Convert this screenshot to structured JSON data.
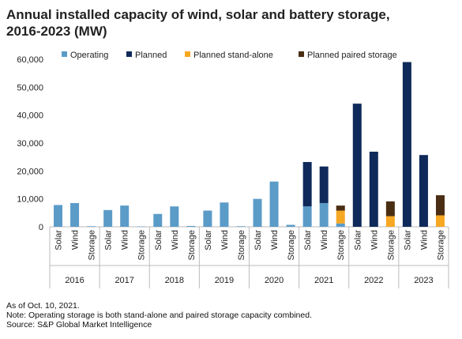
{
  "title_line1": "Annual installed capacity of wind, solar and battery storage,",
  "title_line2": "2016-2023 (MW)",
  "notes": [
    "As of Oct. 10, 2021.",
    "Note: Operating storage is both stand-alone and paired storage capacity combined.",
    "Source: S&P Global Market Intelligence"
  ],
  "colors": {
    "Operating": "#5b9bc8",
    "Planned": "#0f2a5a",
    "Planned stand-alone": "#f7a823",
    "Planned paired storage": "#4a2e14"
  },
  "chart_data": {
    "type": "bar",
    "stacked": true,
    "ylim": [
      0,
      60000
    ],
    "yticks": [
      0,
      10000,
      20000,
      30000,
      40000,
      50000,
      60000
    ],
    "ytick_labels": [
      "0",
      "10,000",
      "20,000",
      "30,000",
      "40,000",
      "50,000",
      "60,000"
    ],
    "legend": [
      "Operating",
      "Planned",
      "Planned stand-alone",
      "Planned paired storage"
    ],
    "legend_position": "top",
    "groups": [
      {
        "year": "2016",
        "bars": [
          {
            "label": "Solar",
            "Operating": 7800,
            "Planned": 0,
            "Planned stand-alone": 0,
            "Planned paired storage": 0
          },
          {
            "label": "Wind",
            "Operating": 8500,
            "Planned": 0,
            "Planned stand-alone": 0,
            "Planned paired storage": 0
          },
          {
            "label": "Storage",
            "Operating": 200,
            "Planned": 0,
            "Planned stand-alone": 0,
            "Planned paired storage": 0
          }
        ]
      },
      {
        "year": "2017",
        "bars": [
          {
            "label": "Solar",
            "Operating": 6000,
            "Planned": 0,
            "Planned stand-alone": 0,
            "Planned paired storage": 0
          },
          {
            "label": "Wind",
            "Operating": 7600,
            "Planned": 0,
            "Planned stand-alone": 0,
            "Planned paired storage": 0
          },
          {
            "label": "Storage",
            "Operating": 100,
            "Planned": 0,
            "Planned stand-alone": 0,
            "Planned paired storage": 0
          }
        ]
      },
      {
        "year": "2018",
        "bars": [
          {
            "label": "Solar",
            "Operating": 4600,
            "Planned": 0,
            "Planned stand-alone": 0,
            "Planned paired storage": 0
          },
          {
            "label": "Wind",
            "Operating": 7300,
            "Planned": 0,
            "Planned stand-alone": 0,
            "Planned paired storage": 0
          },
          {
            "label": "Storage",
            "Operating": 300,
            "Planned": 0,
            "Planned stand-alone": 0,
            "Planned paired storage": 0
          }
        ]
      },
      {
        "year": "2019",
        "bars": [
          {
            "label": "Solar",
            "Operating": 5800,
            "Planned": 0,
            "Planned stand-alone": 0,
            "Planned paired storage": 0
          },
          {
            "label": "Wind",
            "Operating": 8700,
            "Planned": 0,
            "Planned stand-alone": 0,
            "Planned paired storage": 0
          },
          {
            "label": "Storage",
            "Operating": 200,
            "Planned": 0,
            "Planned stand-alone": 0,
            "Planned paired storage": 0
          }
        ]
      },
      {
        "year": "2020",
        "bars": [
          {
            "label": "Solar",
            "Operating": 10000,
            "Planned": 0,
            "Planned stand-alone": 0,
            "Planned paired storage": 0
          },
          {
            "label": "Wind",
            "Operating": 16200,
            "Planned": 0,
            "Planned stand-alone": 0,
            "Planned paired storage": 0
          },
          {
            "label": "Storage",
            "Operating": 700,
            "Planned": 0,
            "Planned stand-alone": 0,
            "Planned paired storage": 0
          }
        ]
      },
      {
        "year": "2021",
        "bars": [
          {
            "label": "Solar",
            "Operating": 7300,
            "Planned": 15900,
            "Planned stand-alone": 0,
            "Planned paired storage": 0
          },
          {
            "label": "Wind",
            "Operating": 8500,
            "Planned": 13100,
            "Planned stand-alone": 0,
            "Planned paired storage": 0
          },
          {
            "label": "Storage",
            "Operating": 1200,
            "Planned": 0,
            "Planned stand-alone": 4600,
            "Planned paired storage": 1800
          }
        ]
      },
      {
        "year": "2022",
        "bars": [
          {
            "label": "Solar",
            "Operating": 0,
            "Planned": 44100,
            "Planned stand-alone": 0,
            "Planned paired storage": 0
          },
          {
            "label": "Wind",
            "Operating": 0,
            "Planned": 26900,
            "Planned stand-alone": 0,
            "Planned paired storage": 0
          },
          {
            "label": "Storage",
            "Operating": 0,
            "Planned": 0,
            "Planned stand-alone": 3800,
            "Planned paired storage": 5300
          }
        ]
      },
      {
        "year": "2023",
        "bars": [
          {
            "label": "Solar",
            "Operating": 0,
            "Planned": 59000,
            "Planned stand-alone": 0,
            "Planned paired storage": 0
          },
          {
            "label": "Wind",
            "Operating": 0,
            "Planned": 25700,
            "Planned stand-alone": 0,
            "Planned paired storage": 0
          },
          {
            "label": "Storage",
            "Operating": 0,
            "Planned": 0,
            "Planned stand-alone": 4100,
            "Planned paired storage": 7200
          }
        ]
      }
    ]
  }
}
